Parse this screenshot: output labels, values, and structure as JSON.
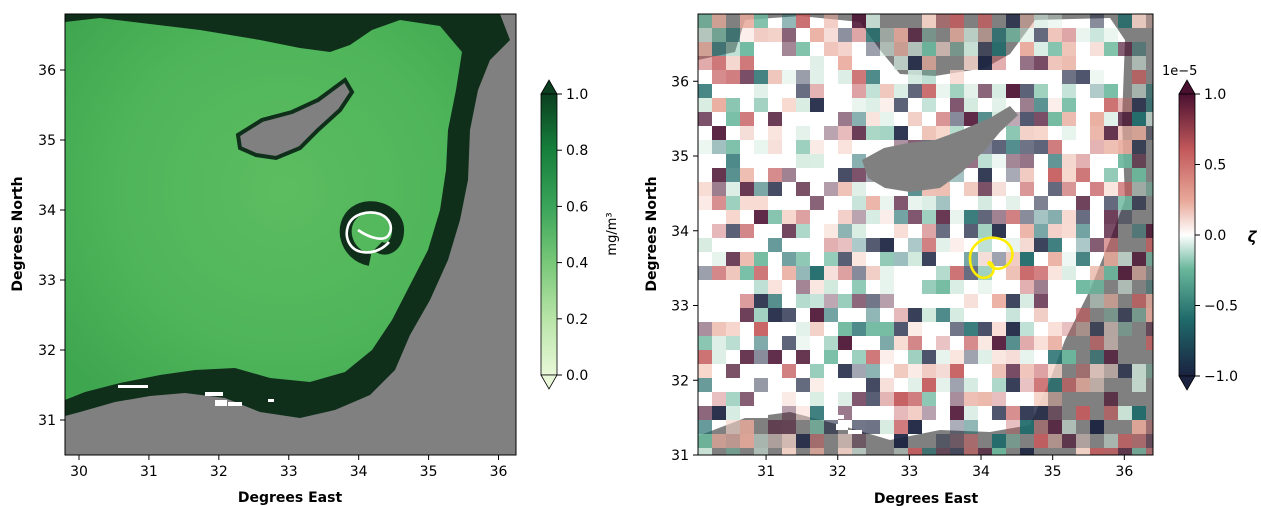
{
  "panels": [
    {
      "id": "left",
      "xlabel": "Degrees East",
      "ylabel": "Degrees North",
      "xticks": [
        "30",
        "31",
        "32",
        "33",
        "34",
        "35",
        "36"
      ],
      "yticks": [
        "31",
        "32",
        "33",
        "34",
        "35",
        "36"
      ],
      "xlim": [
        29.8,
        36.25
      ],
      "ylim": [
        30.5,
        36.8
      ],
      "colorbar": {
        "ticks": [
          "0.0",
          "0.2",
          "0.4",
          "0.6",
          "0.8",
          "1.0"
        ],
        "range": [
          0,
          1
        ],
        "label": "mg/m³",
        "colors": [
          "#e8f8d8",
          "#b8e4a8",
          "#78c878",
          "#3aa45a",
          "#16803c",
          "#0b3f1f"
        ]
      },
      "land_color": "#808080",
      "contour_color": "#ffffff"
    },
    {
      "id": "right",
      "xlabel": "Degrees East",
      "ylabel": "Degrees North",
      "xticks": [
        "31",
        "32",
        "33",
        "34",
        "35",
        "36"
      ],
      "yticks": [
        "31",
        "32",
        "33",
        "34",
        "35",
        "36"
      ],
      "xlim": [
        30.05,
        36.4
      ],
      "ylim": [
        31.0,
        36.9
      ],
      "colorbar": {
        "ticks": [
          "1.0",
          "0.5",
          "0.0",
          "−0.5",
          "−1.0"
        ],
        "range": [
          -1,
          1
        ],
        "scale_label": "1e−5",
        "label": "ζ",
        "colors": [
          "#1a2240",
          "#1f6a6a",
          "#6ab79c",
          "#ffffff",
          "#e8a99a",
          "#c45a5c",
          "#4a1030"
        ]
      },
      "land_color": "#808080",
      "contour_color": "#ffff00"
    }
  ]
}
